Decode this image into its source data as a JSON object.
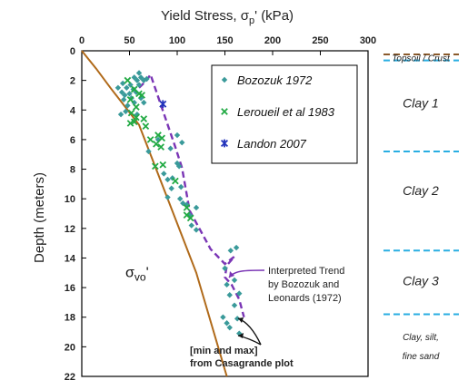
{
  "chart_data": {
    "type": "scatter",
    "title": "Yield Stress, σp' (kPa)",
    "title_parts": {
      "main": "Yield Stress, σ",
      "sub": "p",
      "tail": "' (kPa)"
    },
    "ylabel": "Depth (meters)",
    "xlim": [
      0,
      300
    ],
    "ylim": [
      0,
      22
    ],
    "y_inverted": true,
    "x_axis_position": "top",
    "grid": false,
    "x_ticks": [
      "0",
      "50",
      "100",
      "150",
      "200",
      "250",
      "300"
    ],
    "y_ticks": [
      "0",
      "2",
      "4",
      "6",
      "8",
      "10",
      "12",
      "14",
      "16",
      "18",
      "20",
      "22"
    ],
    "legend_position": "top-right-inside",
    "series": [
      {
        "name": "Bozozuk 1972",
        "marker": "diamond",
        "color": "#3a9a9a",
        "points": [
          [
            43,
            2.2
          ],
          [
            47,
            2.5
          ],
          [
            51,
            2.3
          ],
          [
            55,
            1.8
          ],
          [
            58,
            2.0
          ],
          [
            60,
            2.3
          ],
          [
            62,
            1.8
          ],
          [
            60,
            1.5
          ],
          [
            57,
            2.8
          ],
          [
            54,
            2.6
          ],
          [
            50,
            2.9
          ],
          [
            45,
            3.0
          ],
          [
            42,
            2.8
          ],
          [
            38,
            2.5
          ],
          [
            44,
            3.3
          ],
          [
            48,
            3.7
          ],
          [
            52,
            3.2
          ],
          [
            55,
            3.5
          ],
          [
            46,
            4.1
          ],
          [
            41,
            4.3
          ],
          [
            58,
            4.3
          ],
          [
            62,
            3.2
          ],
          [
            65,
            3.5
          ],
          [
            65,
            2.0
          ],
          [
            68,
            1.9
          ],
          [
            100,
            5.7
          ],
          [
            80,
            6.0
          ],
          [
            93,
            6.6
          ],
          [
            105,
            6.2
          ],
          [
            70,
            6.8
          ],
          [
            100,
            7.6
          ],
          [
            102,
            7.8
          ],
          [
            86,
            8.3
          ],
          [
            90,
            8.7
          ],
          [
            95,
            8.6
          ],
          [
            94,
            9.3
          ],
          [
            104,
            9.2
          ],
          [
            90,
            9.9
          ],
          [
            103,
            10.0
          ],
          [
            106,
            10.3
          ],
          [
            110,
            10.4
          ],
          [
            120,
            10.6
          ],
          [
            113,
            11.1
          ],
          [
            115,
            11.8
          ],
          [
            120,
            12.1
          ],
          [
            156,
            13.5
          ],
          [
            162,
            13.3
          ],
          [
            150,
            14.7
          ],
          [
            152,
            15.8
          ],
          [
            160,
            15.5
          ],
          [
            155,
            16.5
          ],
          [
            165,
            16.4
          ],
          [
            160,
            17.2
          ],
          [
            148,
            18.0
          ],
          [
            163,
            18.1
          ],
          [
            152,
            18.4
          ],
          [
            155,
            18.7
          ],
          [
            165,
            19.1
          ]
        ]
      },
      {
        "name": "Leroueil et al 1983",
        "marker": "x",
        "color": "#22aa44",
        "points": [
          [
            48,
            2.0
          ],
          [
            55,
            2.6
          ],
          [
            60,
            2.9
          ],
          [
            63,
            3.0
          ],
          [
            51,
            3.3
          ],
          [
            57,
            3.8
          ],
          [
            52,
            4.2
          ],
          [
            57,
            4.5
          ],
          [
            65,
            4.6
          ],
          [
            51,
            4.9
          ],
          [
            55,
            4.8
          ],
          [
            67,
            5.1
          ],
          [
            72,
            6.0
          ],
          [
            78,
            6.3
          ],
          [
            80,
            5.7
          ],
          [
            84,
            5.9
          ],
          [
            83,
            6.5
          ],
          [
            85,
            7.7
          ],
          [
            77,
            7.8
          ],
          [
            98,
            8.8
          ],
          [
            110,
            10.6
          ],
          [
            110,
            11.1
          ],
          [
            114,
            11.3
          ]
        ]
      },
      {
        "name": "Landon 2007",
        "marker": "star",
        "color": "#2233bb",
        "points": [
          [
            85,
            3.6
          ]
        ]
      }
    ],
    "trend_label": [
      "Interpreted Trend",
      "by Bozozuk and",
      "Leonards (1972)"
    ],
    "trend_line": [
      [
        60,
        2.5
      ],
      [
        68,
        2.0
      ],
      [
        72,
        1.6
      ],
      [
        98,
        6.5
      ],
      [
        105,
        7.9
      ],
      [
        113,
        10.8
      ],
      [
        135,
        13.4
      ],
      [
        150,
        14.4
      ],
      [
        160,
        13.9
      ],
      [
        152,
        14.5
      ],
      [
        150,
        15.3
      ],
      [
        157,
        15.8
      ],
      [
        165,
        16.8
      ],
      [
        170,
        18.0
      ]
    ],
    "minmax_label": [
      "[min and max]",
      "from Casagrande plot"
    ],
    "sigma_vo": {
      "label_main": "σ",
      "label_sub": "vo",
      "label_tail": "'",
      "line": [
        [
          0,
          0
        ],
        [
          15,
          1.2
        ],
        [
          30,
          2.5
        ],
        [
          60,
          5.0
        ],
        [
          120,
          15.0
        ],
        [
          152,
          22.0
        ]
      ],
      "color": "#b06a1a"
    },
    "strata": {
      "boundaries": [
        {
          "depth": 0.0,
          "color": "#8b5a2b",
          "style": "dashed"
        },
        {
          "depth": 0.65,
          "color": "#29aee2",
          "style": "dashed"
        },
        {
          "depth": 6.8,
          "color": "#29aee2",
          "style": "dashed"
        },
        {
          "depth": 13.5,
          "color": "#29aee2",
          "style": "dashed"
        },
        {
          "depth": 17.8,
          "color": "#29aee2",
          "style": "dashed"
        }
      ],
      "labels": [
        {
          "text": "Topsoil / Crust",
          "depth": 0.45,
          "size": "small"
        },
        {
          "text": "Clay 1",
          "depth": 3.6,
          "size": "large"
        },
        {
          "text": "Clay 2",
          "depth": 9.5,
          "size": "large"
        },
        {
          "text": "Clay 3",
          "depth": 15.6,
          "size": "large"
        },
        {
          "text": "Clay, silt,",
          "depth": 19.3,
          "size": "small"
        },
        {
          "text": "fine sand",
          "depth": 20.6,
          "size": "small"
        }
      ]
    }
  }
}
